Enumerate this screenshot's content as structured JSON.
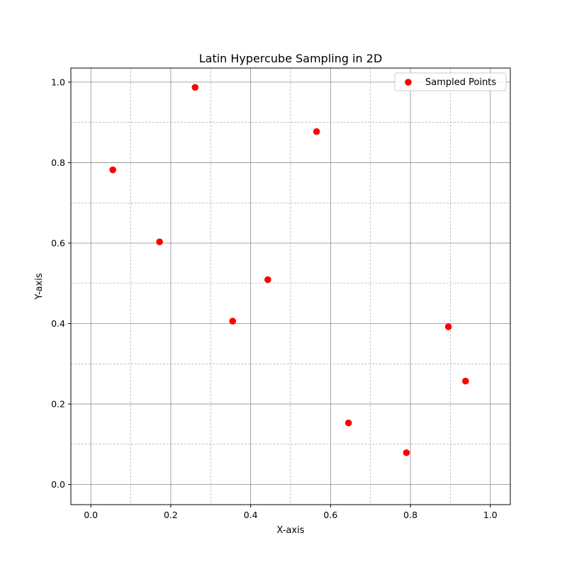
{
  "chart_data": {
    "type": "scatter",
    "title": "Latin Hypercube Sampling in 2D",
    "xlabel": "X-axis",
    "ylabel": "Y-axis",
    "xlim": [
      -0.05,
      1.05
    ],
    "ylim": [
      -0.05,
      1.035
    ],
    "x_ticks": [
      "0.0",
      "0.2",
      "0.4",
      "0.6",
      "0.8",
      "1.0"
    ],
    "y_ticks": [
      "0.0",
      "0.2",
      "0.4",
      "0.6",
      "0.8",
      "1.0"
    ],
    "x_tick_values": [
      0.0,
      0.2,
      0.4,
      0.6,
      0.8,
      1.0
    ],
    "y_tick_values": [
      0.0,
      0.2,
      0.4,
      0.6,
      0.8,
      1.0
    ],
    "grid": true,
    "minor_grid": true,
    "legend_position": "top-right",
    "series": [
      {
        "name": "Sampled Points",
        "color": "#ff0000",
        "marker": "circle",
        "points": [
          {
            "x": 0.055,
            "y": 0.782
          },
          {
            "x": 0.172,
            "y": 0.603
          },
          {
            "x": 0.261,
            "y": 0.987
          },
          {
            "x": 0.355,
            "y": 0.406
          },
          {
            "x": 0.443,
            "y": 0.509
          },
          {
            "x": 0.565,
            "y": 0.877
          },
          {
            "x": 0.645,
            "y": 0.153
          },
          {
            "x": 0.79,
            "y": 0.079
          },
          {
            "x": 0.895,
            "y": 0.392
          },
          {
            "x": 0.938,
            "y": 0.257
          }
        ]
      }
    ]
  }
}
